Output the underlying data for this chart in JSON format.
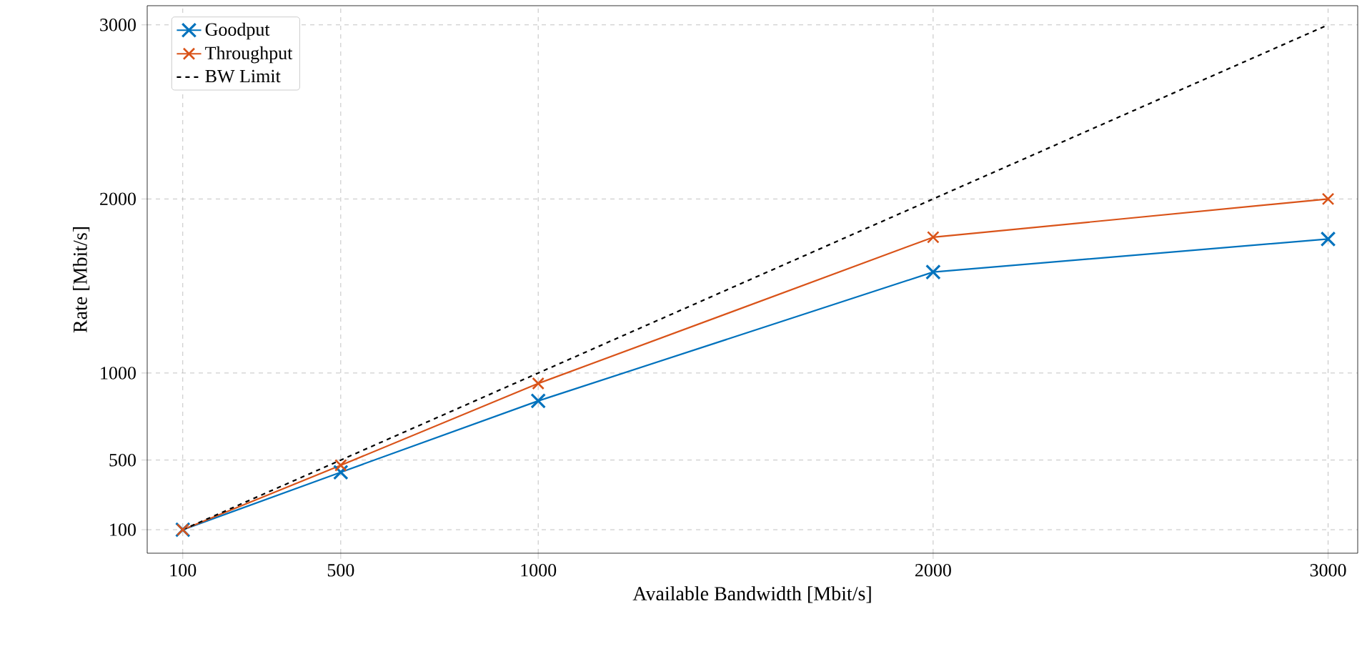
{
  "chart_data": {
    "type": "line",
    "xlabel": "Available Bandwidth [Mbit/s]",
    "ylabel": "Rate [Mbit/s]",
    "x": [
      100,
      500,
      1000,
      2000,
      3000
    ],
    "series": [
      {
        "name": "Goodput",
        "color": "#0072bd",
        "values": [
          100,
          430,
          840,
          1580,
          1770
        ],
        "marker": "cross",
        "line_style": "solid"
      },
      {
        "name": "Throughput",
        "color": "#d95319",
        "values": [
          100,
          470,
          940,
          1780,
          2000
        ],
        "marker": "cross",
        "line_style": "solid"
      },
      {
        "name": "BW Limit",
        "color": "#000000",
        "values": [
          100,
          500,
          1000,
          2000,
          3000
        ],
        "marker": "none",
        "line_style": "dashed"
      }
    ],
    "xlim": [
      10,
      3075
    ],
    "ylim": [
      -35,
      3110
    ],
    "xticks": [
      100,
      500,
      1000,
      2000,
      3000
    ],
    "yticks": [
      100,
      500,
      1000,
      2000,
      3000
    ],
    "grid": true,
    "legend": "top left"
  }
}
